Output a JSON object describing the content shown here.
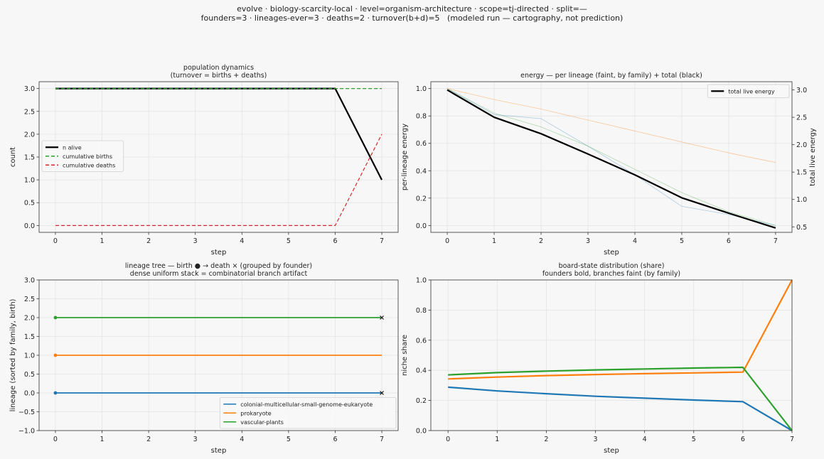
{
  "suptitle": {
    "line1": "evolve · biology-scarcity-local · level=organism-architecture · scope=tj-directed · split=—",
    "line2": "founders=3 · lineages-ever=3 · deaths=2 · turnover(b+d)=5   (modeled run — cartography, not prediction)"
  },
  "chart_data": [
    {
      "id": "pop",
      "type": "line",
      "title": "population dynamics",
      "subtitle": "(turnover = births + deaths)",
      "xlabel": "step",
      "ylabel": "count",
      "xlim": [
        -0.35,
        7.35
      ],
      "ylim": [
        -0.15,
        3.15
      ],
      "xticks": [
        0,
        1,
        2,
        3,
        4,
        5,
        6,
        7
      ],
      "yticks": [
        0.0,
        0.5,
        1.0,
        1.5,
        2.0,
        2.5,
        3.0
      ],
      "ytick_labels": [
        "0.0",
        "0.5",
        "1.0",
        "1.5",
        "2.0",
        "2.5",
        "3.0"
      ],
      "grid": true,
      "legend": "center-left",
      "x": [
        0,
        1,
        2,
        3,
        4,
        5,
        6,
        7
      ],
      "series": [
        {
          "name": "n alive",
          "color": "#000000",
          "width": 2.2,
          "dash": "",
          "values": [
            3,
            3,
            3,
            3,
            3,
            3,
            3,
            1
          ]
        },
        {
          "name": "cumulative births",
          "color": "#2ca02c",
          "width": 1.2,
          "dash": "5,3",
          "values": [
            3,
            3,
            3,
            3,
            3,
            3,
            3,
            3
          ]
        },
        {
          "name": "cumulative deaths",
          "color": "#d62728",
          "width": 1.2,
          "dash": "5,3",
          "values": [
            0,
            0,
            0,
            0,
            0,
            0,
            0,
            2
          ]
        }
      ]
    },
    {
      "id": "energy",
      "type": "line",
      "title": "energy — per lineage (faint, by family) + total (black)",
      "xlabel": "step",
      "ylabel": "per-lineage energy",
      "ylabel_right": "total live energy",
      "xlim": [
        -0.35,
        7.35
      ],
      "ylim": [
        -0.05,
        1.05
      ],
      "ylim_right": [
        0.4,
        3.15
      ],
      "xticks": [
        0,
        1,
        2,
        3,
        4,
        5,
        6,
        7
      ],
      "yticks": [
        0.0,
        0.2,
        0.4,
        0.6,
        0.8,
        1.0
      ],
      "ytick_labels": [
        "0.0",
        "0.2",
        "0.4",
        "0.6",
        "0.8",
        "1.0"
      ],
      "yticks_right": [
        0.5,
        1.0,
        1.5,
        2.0,
        2.5,
        3.0
      ],
      "ytick_labels_right": [
        "0.5",
        "1.0",
        "1.5",
        "2.0",
        "2.5",
        "3.0"
      ],
      "grid": true,
      "legend": "top-right",
      "x": [
        0,
        1,
        2,
        3,
        4,
        5,
        6,
        7
      ],
      "series": [
        {
          "color": "#1f77b4",
          "width": 0.8,
          "opacity": 0.35,
          "axis": "left",
          "values": [
            1.0,
            0.81,
            0.78,
            0.58,
            0.37,
            0.14,
            0.08,
            0.0
          ]
        },
        {
          "color": "#ff7f0e",
          "width": 0.8,
          "opacity": 0.4,
          "axis": "left",
          "values": [
            1.0,
            0.92,
            0.85,
            0.77,
            0.69,
            0.61,
            0.53,
            0.46
          ]
        },
        {
          "color": "#2ca02c",
          "width": 0.8,
          "opacity": 0.35,
          "axis": "left",
          "values": [
            1.0,
            0.82,
            0.72,
            0.58,
            0.41,
            0.24,
            0.1,
            0.0
          ]
        },
        {
          "name": "total live energy",
          "color": "#000000",
          "width": 2.2,
          "opacity": 1,
          "axis": "right",
          "values": [
            3.0,
            2.5,
            2.2,
            1.83,
            1.45,
            1.03,
            0.75,
            0.48
          ]
        }
      ]
    },
    {
      "id": "tree",
      "type": "line",
      "title": "lineage tree — birth ● → death ×  (grouped by founder)",
      "subtitle": "dense uniform stack = combinatorial branch artifact",
      "xlabel": "step",
      "ylabel": "lineage (sorted by family, birth)",
      "xlim": [
        -0.35,
        7.35
      ],
      "ylim": [
        -1.0,
        3.0
      ],
      "xticks": [
        0,
        1,
        2,
        3,
        4,
        5,
        6,
        7
      ],
      "yticks": [
        -1.0,
        -0.5,
        0.0,
        0.5,
        1.0,
        1.5,
        2.0,
        2.5,
        3.0
      ],
      "ytick_labels": [
        "−1.0",
        "−0.5",
        "0.0",
        "0.5",
        "1.0",
        "1.5",
        "2.0",
        "2.5",
        "3.0"
      ],
      "grid": true,
      "legend": "bottom-right",
      "series": [
        {
          "name": "colonial-multicellular-small-genome-eukaryote",
          "color": "#1f77b4",
          "y": 0,
          "birth": 0,
          "death": 7,
          "died": true
        },
        {
          "name": "prokaryote",
          "color": "#ff7f0e",
          "y": 1,
          "birth": 0,
          "death": 7,
          "died": false
        },
        {
          "name": "vascular-plants",
          "color": "#2ca02c",
          "y": 2,
          "birth": 0,
          "death": 7,
          "died": true
        }
      ]
    },
    {
      "id": "share",
      "type": "line",
      "title": "board-state distribution (share)",
      "subtitle": "founders bold, branches faint (by family)",
      "xlabel": "step",
      "ylabel": "niche share",
      "xlim": [
        -0.35,
        7.0
      ],
      "ylim": [
        0.0,
        1.0
      ],
      "xticks": [
        0,
        1,
        2,
        3,
        4,
        5,
        6,
        7
      ],
      "yticks": [
        0.0,
        0.2,
        0.4,
        0.6,
        0.8,
        1.0
      ],
      "ytick_labels": [
        "0.0",
        "0.2",
        "0.4",
        "0.6",
        "0.8",
        "1.0"
      ],
      "grid": true,
      "x": [
        0,
        1,
        2,
        3,
        4,
        5,
        6,
        7
      ],
      "series": [
        {
          "color": "#1f77b4",
          "width": 2.2,
          "values": [
            0.288,
            0.263,
            0.245,
            0.228,
            0.215,
            0.203,
            0.192,
            0.0
          ]
        },
        {
          "color": "#ff7f0e",
          "width": 2.2,
          "values": [
            0.343,
            0.355,
            0.365,
            0.372,
            0.378,
            0.383,
            0.388,
            1.0
          ]
        },
        {
          "color": "#2ca02c",
          "width": 2.2,
          "values": [
            0.37,
            0.385,
            0.395,
            0.403,
            0.409,
            0.415,
            0.42,
            0.0
          ]
        }
      ]
    }
  ]
}
